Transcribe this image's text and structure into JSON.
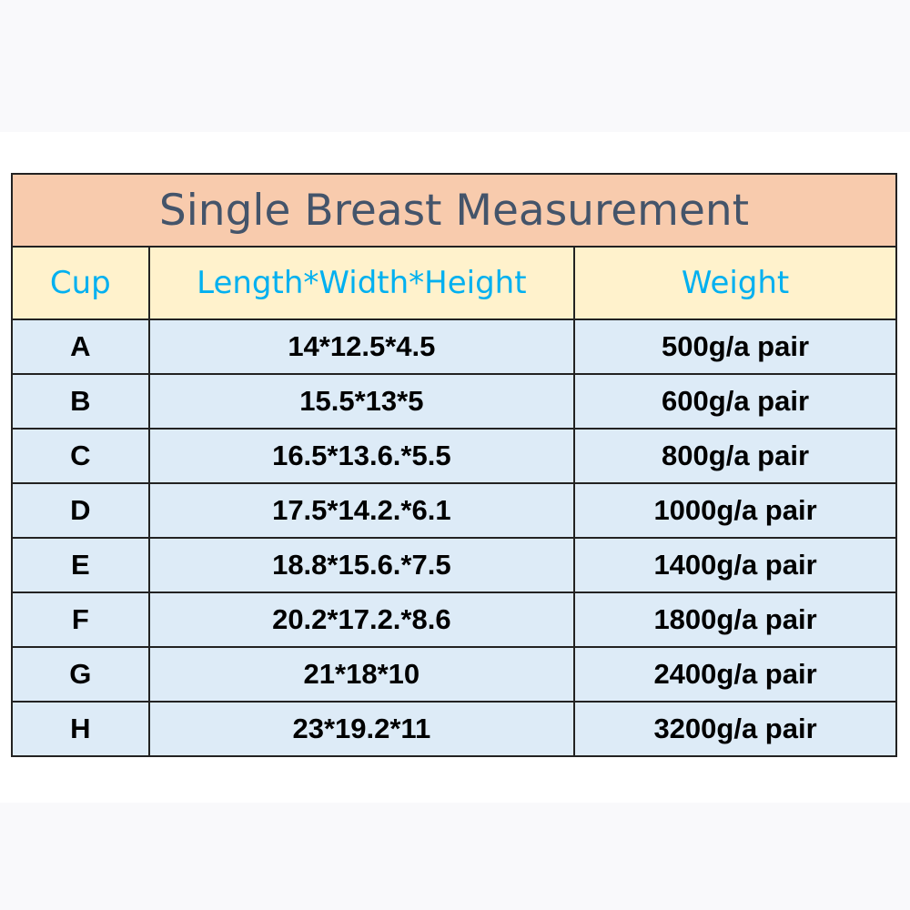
{
  "title": "Single Breast Measurement",
  "columns": [
    "Cup",
    "Length*Width*Height",
    "Weight"
  ],
  "rows": [
    {
      "cup": "A",
      "dims": "14*12.5*4.5",
      "weight": "500g/a pair"
    },
    {
      "cup": "B",
      "dims": "15.5*13*5",
      "weight": "600g/a pair"
    },
    {
      "cup": "C",
      "dims": "16.5*13.6.*5.5",
      "weight": "800g/a pair"
    },
    {
      "cup": "D",
      "dims": "17.5*14.2.*6.1",
      "weight": "1000g/a pair"
    },
    {
      "cup": "E",
      "dims": "18.8*15.6.*7.5",
      "weight": "1400g/a pair"
    },
    {
      "cup": "F",
      "dims": "20.2*17.2.*8.6",
      "weight": "1800g/a pair"
    },
    {
      "cup": "G",
      "dims": "21*18*10",
      "weight": "2400g/a pair"
    },
    {
      "cup": "H",
      "dims": "23*19.2*11",
      "weight": "3200g/a pair"
    }
  ],
  "colors": {
    "title_bg": "#f8cbad",
    "header_bg": "#fff2cc",
    "row_bg": "#ddebf7",
    "header_text": "#00b0f0",
    "title_text": "#44546a"
  }
}
